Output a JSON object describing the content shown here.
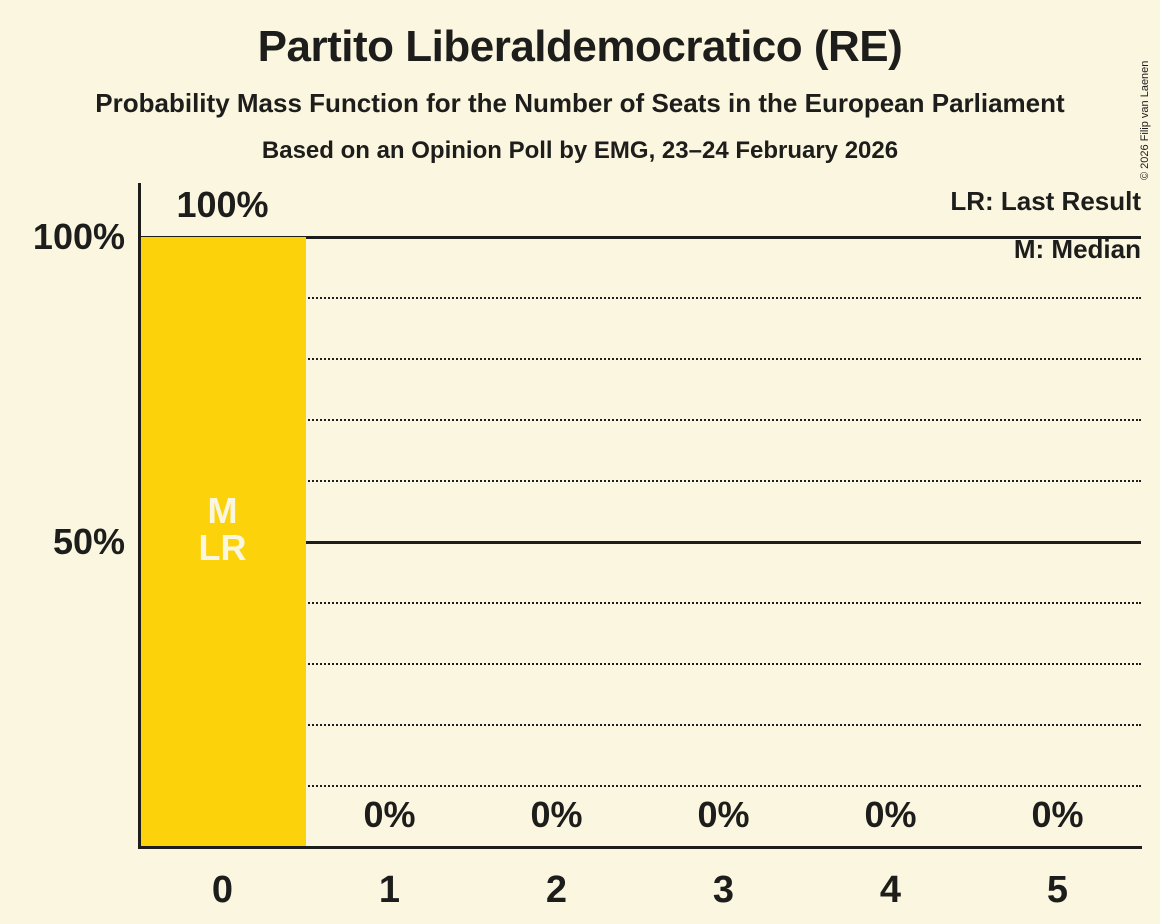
{
  "title": "Partito Liberaldemocratico (RE)",
  "subtitle": "Probability Mass Function for the Number of Seats in the European Parliament",
  "poll_info": "Based on an Opinion Poll by EMG, 23–24 February 2026",
  "copyright": "© 2026 Filip van Laenen",
  "legend": {
    "lr": "LR: Last Result",
    "m": "M: Median"
  },
  "colors": {
    "background": "#FBF6DF",
    "bar": "#FCD20B",
    "text": "#1D1D1B",
    "bar_annotation_text": "#FBF6DF"
  },
  "chart_data": {
    "type": "bar",
    "title": "Partito Liberaldemocratico (RE)",
    "categories": [
      "0",
      "1",
      "2",
      "3",
      "4",
      "5"
    ],
    "values": [
      100,
      0,
      0,
      0,
      0,
      0
    ],
    "bar_labels": [
      "100%",
      "0%",
      "0%",
      "0%",
      "0%",
      "0%"
    ],
    "xlabel": "",
    "ylabel": "",
    "ylim": [
      0,
      100
    ],
    "yticks": [
      {
        "value": 100,
        "label": "100%"
      },
      {
        "value": 50,
        "label": "50%"
      }
    ],
    "gridlines": {
      "solid": [
        100,
        50
      ],
      "dotted": [
        90,
        80,
        70,
        60,
        40,
        30,
        20,
        10
      ]
    },
    "legend_position": "top-right",
    "annotations": [
      {
        "category": "0",
        "lines": [
          "M",
          "LR"
        ],
        "meaning": [
          "Median",
          "Last Result"
        ]
      }
    ]
  }
}
